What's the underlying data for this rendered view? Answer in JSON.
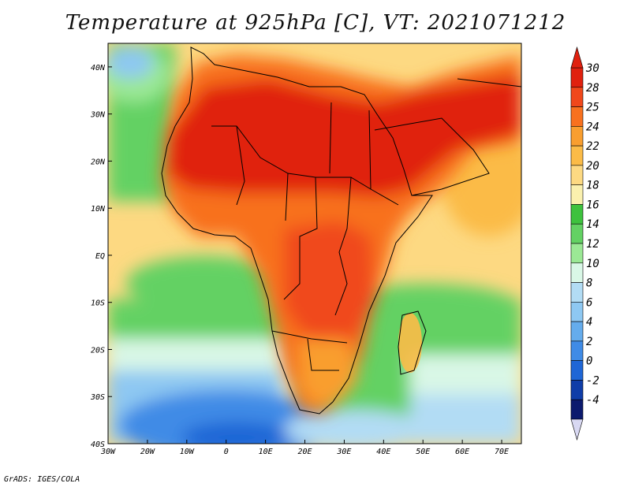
{
  "title": "Temperature at 925hPa [C], VT: 2021071212",
  "credit": "GrADS: IGES/COLA",
  "map": {
    "region": "Africa",
    "variable": "Temperature at 925hPa",
    "units": "C",
    "valid_time": "2021071212",
    "lon_range": [
      -30,
      75
    ],
    "lat_range": [
      -40,
      45
    ],
    "x_ticks": [
      "30W",
      "20W",
      "10W",
      "0",
      "10E",
      "20E",
      "30E",
      "40E",
      "50E",
      "60E",
      "70E"
    ],
    "y_ticks": [
      "40N",
      "30N",
      "20N",
      "10N",
      "EQ",
      "10S",
      "20S",
      "30S",
      "40S"
    ]
  },
  "colorbar": {
    "levels": [
      "30",
      "28",
      "25",
      "24",
      "22",
      "20",
      "18",
      "16",
      "14",
      "12",
      "10",
      "8",
      "6",
      "4",
      "2",
      "0",
      "-2",
      "-4"
    ],
    "colors": [
      "#e0210f",
      "#f0481b",
      "#f8711f",
      "#f99e2f",
      "#fbbb47",
      "#fdd982",
      "#faf0ae",
      "#3ec23e",
      "#63d163",
      "#9be895",
      "#d9f7e6",
      "#b2dcf4",
      "#8ec8f2",
      "#65acec",
      "#3f8be6",
      "#1f66d6",
      "#0f3da8",
      "#0c1a6e"
    ]
  }
}
